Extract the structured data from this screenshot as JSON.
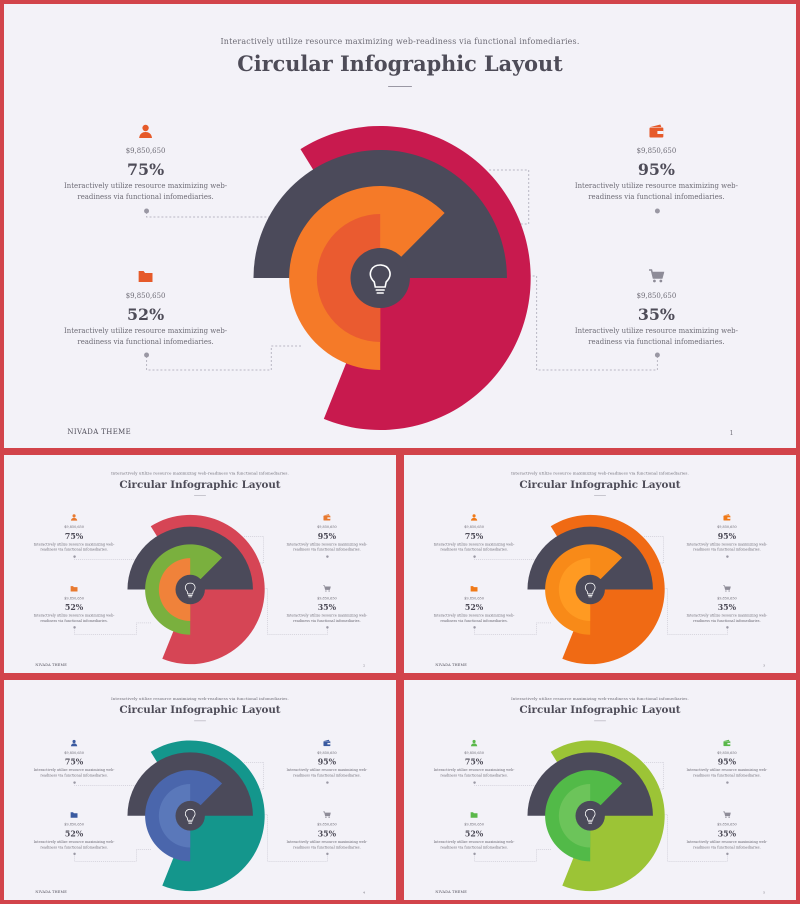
{
  "slides": [
    {
      "subtitle": "Interactively utilize resource maximizing web-readiness via functional infomediaries.",
      "title": "Circular Infographic Layout",
      "footer": "NIVADA THEME",
      "page_number": "1",
      "colors": {
        "outer": "#c81a4e",
        "middle": "#4b4a5a",
        "ring3": "#f57a28",
        "inner": "#ea5b30"
      },
      "icon_color": "#e65a2a"
    },
    {
      "subtitle": "Interactively utilize resource maximizing web-readiness via functional infomediaries.",
      "title": "Circular Infographic Layout",
      "footer": "NIVADA THEME",
      "page_number": "2",
      "colors": {
        "outer": "#d64555",
        "middle": "#4b4a5a",
        "ring3": "#7ab03e",
        "inner": "#f0823a"
      },
      "icon_color": "#e87a30"
    },
    {
      "subtitle": "Interactively utilize resource maximizing web-readiness via functional infomediaries.",
      "title": "Circular Infographic Layout",
      "footer": "NIVADA THEME",
      "page_number": "3",
      "colors": {
        "outer": "#f06a14",
        "middle": "#4b4a5a",
        "ring3": "#f88a18",
        "inner": "#ff9a22"
      },
      "icon_color": "#f07a18"
    },
    {
      "subtitle": "Interactively utilize resource maximizing web-readiness via functional infomediaries.",
      "title": "Circular Infographic Layout",
      "footer": "NIVADA THEME",
      "page_number": "4",
      "colors": {
        "outer": "#14968c",
        "middle": "#4b4a5a",
        "ring3": "#4a66ac",
        "inner": "#5a78ba"
      },
      "icon_color": "#3a5aa0"
    },
    {
      "subtitle": "Interactively utilize resource maximizing web-readiness via functional infomediaries.",
      "title": "Circular Infographic Layout",
      "footer": "NIVADA THEME",
      "page_number": "5",
      "colors": {
        "outer": "#9cc436",
        "middle": "#4b4a5a",
        "ring3": "#52ba48",
        "inner": "#6cc45a"
      },
      "icon_color": "#5ab84a"
    }
  ],
  "info_blocks": [
    {
      "position": "top-left",
      "icon": "user-icon",
      "amount": "$9,850,650",
      "percent": "75%",
      "description_line1": "Interactively utilize resource maximizing web-",
      "description_line2": "readiness via functional infomediaries."
    },
    {
      "position": "bottom-left",
      "icon": "folder-icon",
      "amount": "$9,850,650",
      "percent": "52%",
      "description_line1": "Interactively utilize resource maximizing web-",
      "description_line2": "readiness via functional infomediaries."
    },
    {
      "position": "top-right",
      "icon": "wallet-icon",
      "amount": "$9,850,650",
      "percent": "95%",
      "description_line1": "Interactively utilize resource maximizing web-",
      "description_line2": "readiness via functional infomediaries."
    },
    {
      "position": "bottom-right",
      "icon": "cart-icon",
      "amount": "$9,850,650",
      "percent": "35%",
      "description_line1": "Interactively utilize resource maximizing web-",
      "description_line2": "readiness via functional infomediaries."
    }
  ],
  "center_icon": "lightbulb-icon"
}
